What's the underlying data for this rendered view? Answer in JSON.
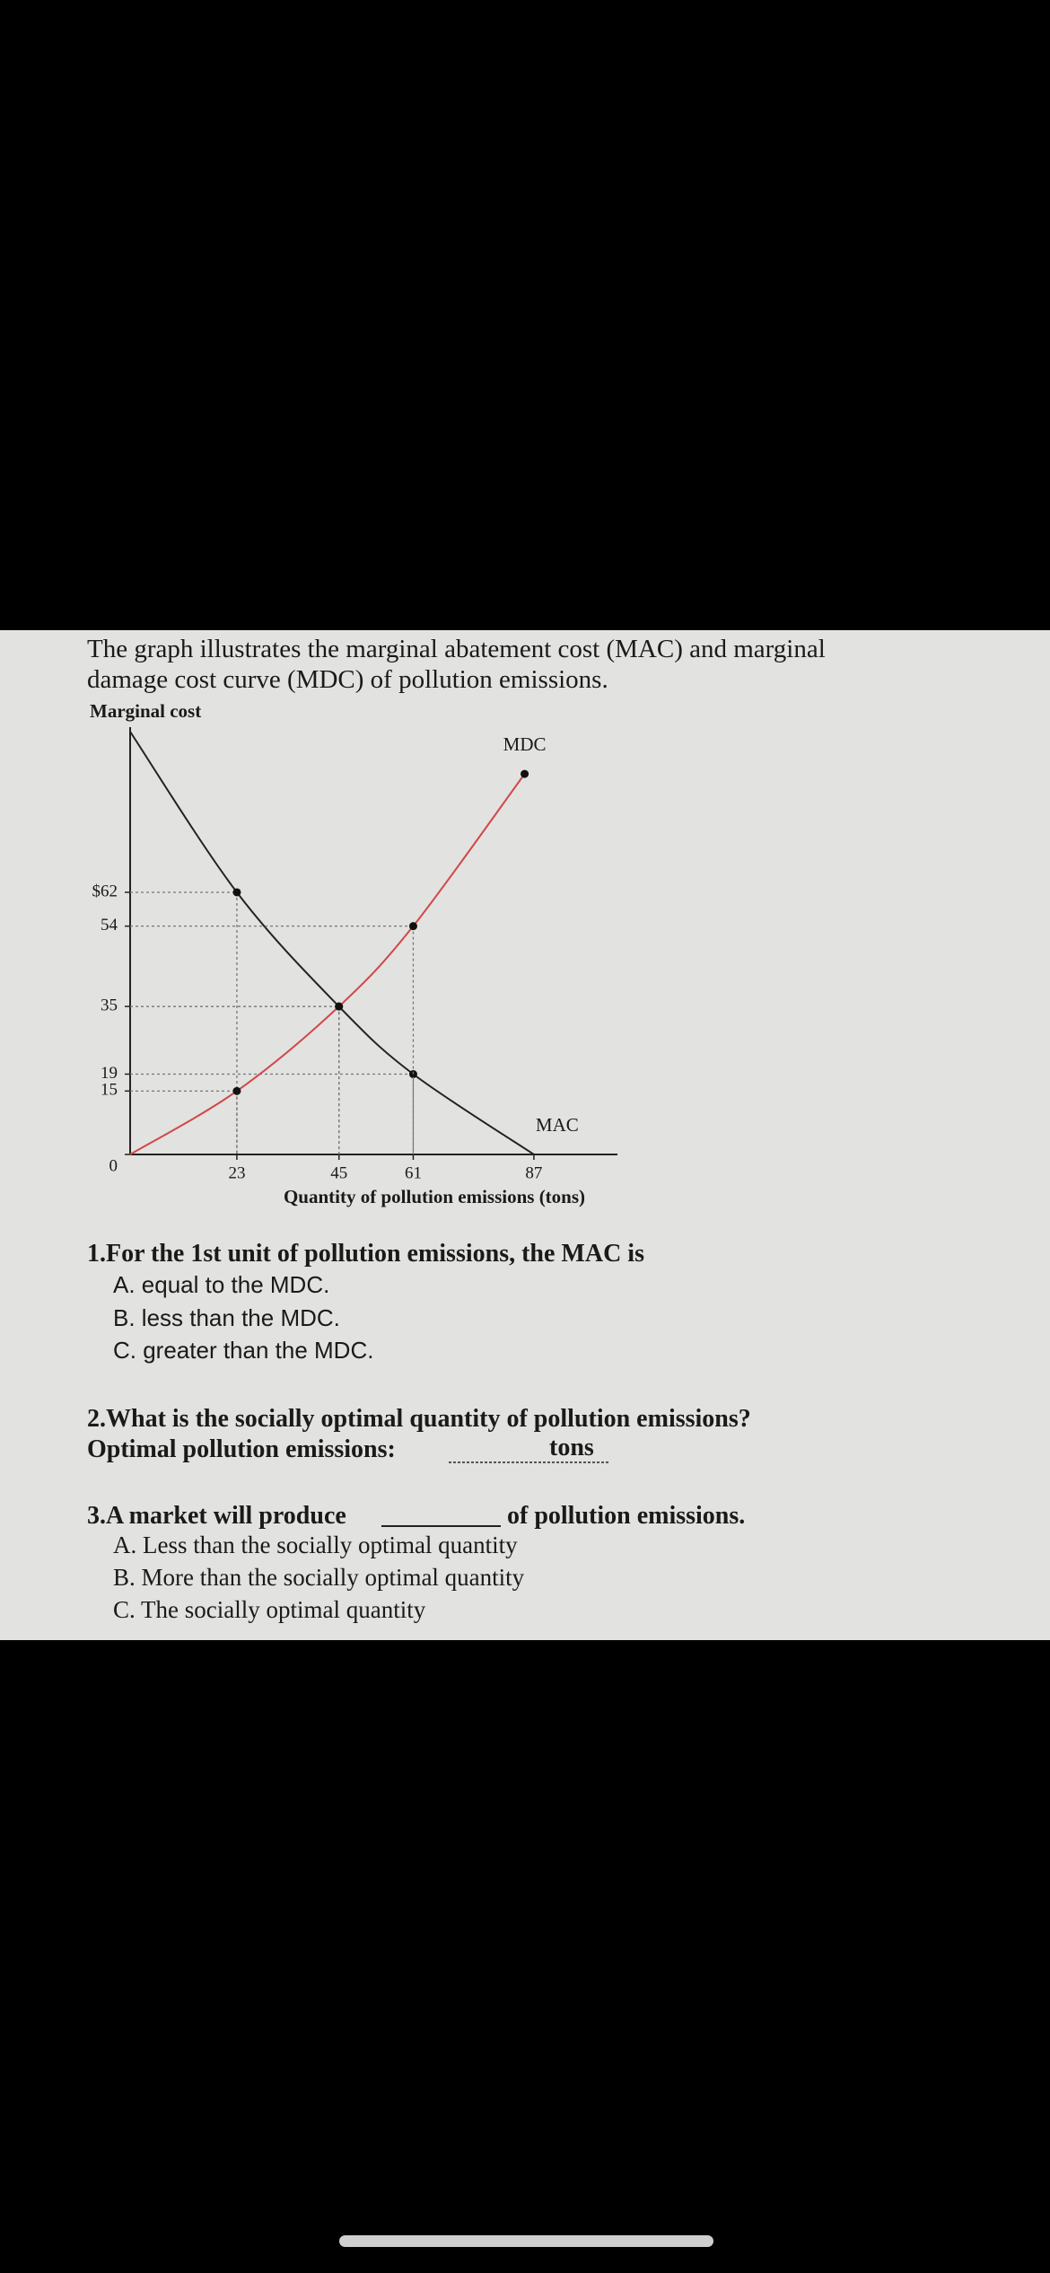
{
  "chart_data": {
    "type": "line",
    "title_lines": [
      "The graph illustrates the marginal abatement cost (MAC) and marginal",
      "damage cost curve (MDC) of pollution emissions."
    ],
    "ylabel": "Marginal cost",
    "xlabel": "Quantity of pollution emissions (tons)",
    "xlim": [
      0,
      105
    ],
    "ylim": [
      0,
      100
    ],
    "xticks": [
      23,
      45,
      61,
      87
    ],
    "yticks": [
      0,
      15,
      19,
      35,
      54,
      {
        "value": 62,
        "label": "$62"
      }
    ],
    "series": [
      {
        "name": "MAC",
        "color": "#222222",
        "x": [
          0,
          23,
          45,
          61,
          87
        ],
        "values": [
          100,
          62,
          35,
          19,
          0
        ]
      },
      {
        "name": "MDC",
        "color": "#d04848",
        "x": [
          0,
          23,
          45,
          61,
          85
        ],
        "values": [
          0,
          15,
          35,
          54,
          90
        ]
      }
    ]
  },
  "questions": {
    "q1": {
      "prompt": "1.For the 1st unit of pollution emissions, the MAC is",
      "options": [
        "A. equal to the MDC.",
        "B. less than the MDC.",
        "C. greater than the MDC."
      ]
    },
    "q2": {
      "prompt": "2.What is the socially optimal quantity of pollution emissions?",
      "answer_label": "Optimal pollution emissions:",
      "unit": "tons"
    },
    "q3": {
      "prompt_start": "3.A market will produce",
      "prompt_end": "of pollution emissions.",
      "options": [
        "A. Less than the socially optimal quantity",
        "B. More than the socially optimal quantity",
        "C. The socially optimal quantity"
      ]
    }
  }
}
